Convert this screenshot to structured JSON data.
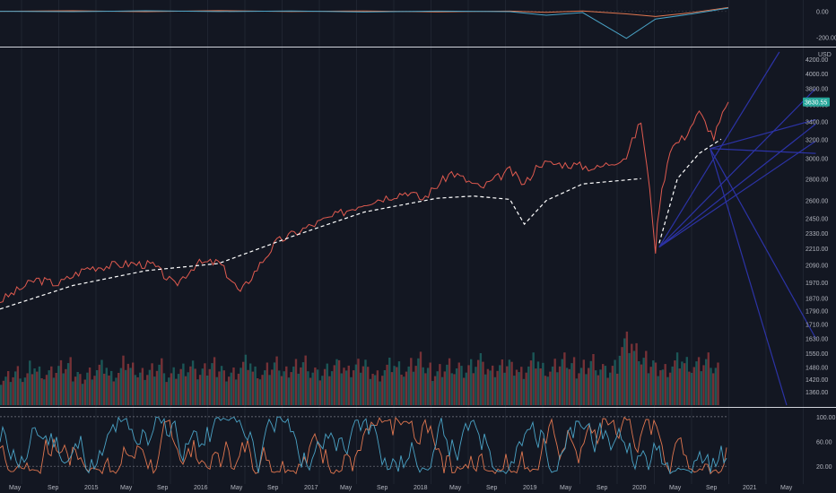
{
  "chart_data": [
    {
      "type": "line",
      "pane": "oscillator-top",
      "ylim": [
        -260,
        60
      ],
      "y_ticks": [
        "0.00",
        "-200.00"
      ],
      "series": [
        {
          "color": "#e0764f",
          "x": [
            0,
            0.1,
            0.2,
            0.3,
            0.4,
            0.5,
            0.6,
            0.7,
            0.75,
            0.8,
            0.86,
            0.9,
            0.95,
            1.0
          ],
          "values": [
            0,
            4,
            -3,
            5,
            -2,
            3,
            -4,
            2,
            -8,
            3,
            -20,
            -40,
            -10,
            30
          ]
        },
        {
          "color": "#4aa3c6",
          "x": [
            0,
            0.1,
            0.2,
            0.3,
            0.4,
            0.5,
            0.6,
            0.7,
            0.75,
            0.8,
            0.86,
            0.9,
            0.95,
            1.0
          ],
          "values": [
            0,
            -3,
            4,
            -2,
            3,
            -5,
            2,
            -3,
            -30,
            -10,
            -210,
            -60,
            -20,
            25
          ]
        }
      ]
    },
    {
      "type": "line",
      "pane": "price",
      "y_unit": "USD",
      "ylim": [
        1300,
        4300
      ],
      "scale": "log",
      "y_ticks": [
        "4200.00",
        "4000.00",
        "3800.00",
        "3600.00",
        "3400.00",
        "3200.00",
        "3000.00",
        "2800.00",
        "2600.00",
        "2450.00",
        "2330.00",
        "2210.00",
        "2090.00",
        "1970.00",
        "1870.00",
        "1790.00",
        "1710.00",
        "1630.00",
        "1550.00",
        "1480.00",
        "1420.00",
        "1360.00"
      ],
      "last_price": "3630.55",
      "series": [
        {
          "color": "#e05a4f",
          "x": [
            0.0,
            0.05,
            0.08,
            0.12,
            0.18,
            0.21,
            0.24,
            0.27,
            0.3,
            0.33,
            0.38,
            0.42,
            0.46,
            0.5,
            0.56,
            0.58,
            0.62,
            0.66,
            0.7,
            0.72,
            0.74,
            0.78,
            0.82,
            0.86,
            0.88,
            0.9,
            0.905,
            0.92,
            0.94,
            0.96,
            0.98,
            1.0
          ],
          "values": [
            1850,
            1990,
            1960,
            2070,
            2100,
            2090,
            1950,
            2100,
            2110,
            1900,
            2260,
            2370,
            2470,
            2580,
            2680,
            2610,
            2860,
            2710,
            2880,
            2740,
            2950,
            2940,
            2900,
            3020,
            3400,
            2200,
            2550,
            3100,
            3230,
            3500,
            3220,
            3630
          ]
        },
        {
          "color": "#ffffff",
          "dashed": true,
          "x": [
            0.0,
            0.1,
            0.2,
            0.3,
            0.4,
            0.5,
            0.6,
            0.65,
            0.7,
            0.72,
            0.75,
            0.8,
            0.88
          ],
          "values": [
            1800,
            1950,
            2050,
            2100,
            2300,
            2500,
            2620,
            2640,
            2610,
            2400,
            2600,
            2750,
            2800
          ]
        },
        {
          "color": "#ffffff",
          "dashed": true,
          "x": [
            0.905,
            0.93,
            0.96,
            0.99
          ],
          "values": [
            2250,
            2800,
            3050,
            3200
          ]
        }
      ],
      "fan_lines": [
        {
          "color": "#2c33a6",
          "from": [
            0.905,
            2220
          ],
          "to": [
            1.07,
            4300
          ]
        },
        {
          "color": "#2c33a6",
          "from": [
            0.905,
            2220
          ],
          "to": [
            1.12,
            3800
          ]
        },
        {
          "color": "#2c33a6",
          "from": [
            0.905,
            2220
          ],
          "to": [
            1.12,
            3370
          ]
        },
        {
          "color": "#2c33a6",
          "from": [
            0.905,
            2220
          ],
          "to": [
            1.12,
            3180
          ]
        },
        {
          "color": "#2c33a6",
          "from": [
            0.975,
            3100
          ],
          "to": [
            1.12,
            3420
          ]
        },
        {
          "color": "#2c33a6",
          "from": [
            0.975,
            3100
          ],
          "to": [
            1.12,
            3050
          ]
        },
        {
          "color": "#2c33a6",
          "from": [
            0.975,
            3100
          ],
          "to": [
            1.12,
            1630
          ]
        },
        {
          "color": "#2c33a6",
          "from": [
            0.975,
            3100
          ],
          "to": [
            1.08,
            1300
          ]
        }
      ]
    },
    {
      "type": "bar",
      "pane": "volume",
      "colors": {
        "up": "#26a69a",
        "down": "#ef5350"
      },
      "values": [
        42,
        48,
        55,
        45,
        60,
        52,
        47,
        50,
        58,
        62,
        49,
        44,
        53,
        57,
        61,
        46,
        50,
        64,
        55,
        48,
        52,
        59,
        66,
        45,
        51,
        56,
        60,
        47,
        54,
        62,
        58,
        49,
        53,
        61,
        68,
        52,
        47,
        55,
        63,
        50,
        57,
        65,
        70,
        53,
        48,
        56,
        62,
        58,
        51,
        60,
        67,
        54,
        49,
        57,
        64,
        59,
        52,
        61,
        69,
        55,
        50,
        58,
        66,
        60,
        53,
        62,
        70,
        56,
        51,
        59,
        67,
        61,
        54,
        63,
        71,
        57,
        52,
        60,
        68,
        62,
        55,
        64,
        72,
        58,
        53,
        61,
        90,
        95,
        80,
        70,
        66,
        60,
        58,
        63,
        71,
        65,
        59,
        62,
        68,
        55
      ]
    },
    {
      "type": "line",
      "pane": "stochastic",
      "ylim": [
        0,
        110
      ],
      "y_ticks": [
        "100.00",
        "60.00",
        "20.00"
      ],
      "series": [
        {
          "color": "#e0764f",
          "seed": 7
        },
        {
          "color": "#4aa3c6",
          "seed": 11
        }
      ]
    }
  ],
  "time_axis": [
    "May",
    "Sep",
    "2015",
    "May",
    "Sep",
    "2016",
    "May",
    "Sep",
    "2017",
    "May",
    "Sep",
    "2018",
    "May",
    "Sep",
    "2019",
    "May",
    "Sep",
    "2020",
    "May",
    "Sep",
    "2021",
    "May"
  ]
}
